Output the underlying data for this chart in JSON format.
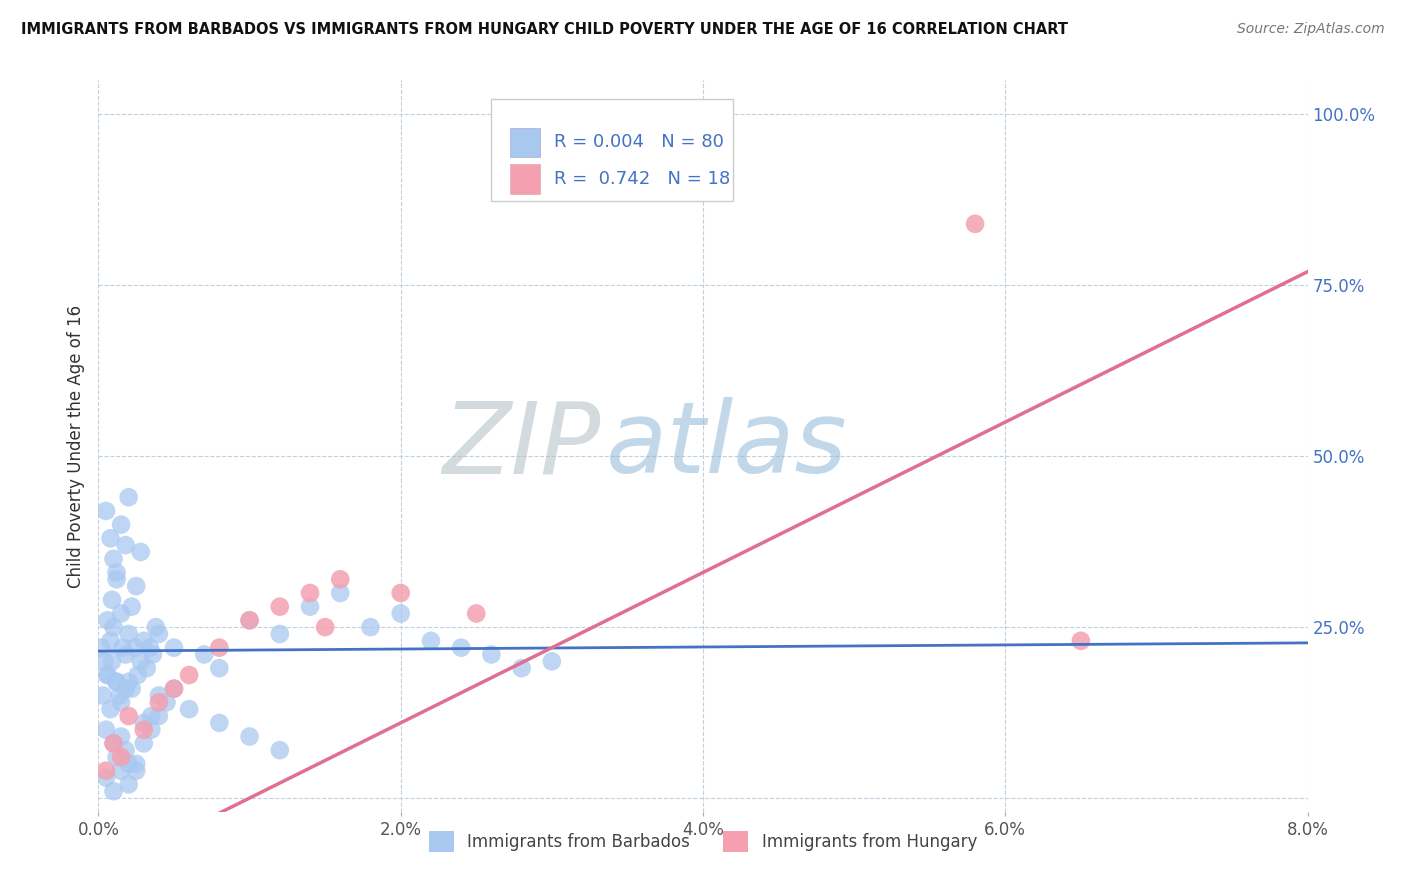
{
  "title": "IMMIGRANTS FROM BARBADOS VS IMMIGRANTS FROM HUNGARY CHILD POVERTY UNDER THE AGE OF 16 CORRELATION CHART",
  "source": "Source: ZipAtlas.com",
  "ylabel": "Child Poverty Under the Age of 16",
  "xlabel_barbados": "Immigrants from Barbados",
  "xlabel_hungary": "Immigrants from Hungary",
  "xlim": [
    0.0,
    0.08
  ],
  "ylim": [
    -0.02,
    1.05
  ],
  "xticks": [
    0.0,
    0.02,
    0.04,
    0.06,
    0.08
  ],
  "xtick_labels": [
    "0.0%",
    "2.0%",
    "4.0%",
    "6.0%",
    "8.0%"
  ],
  "yticks": [
    0.0,
    0.25,
    0.5,
    0.75,
    1.0
  ],
  "ytick_labels": [
    "",
    "25.0%",
    "50.0%",
    "75.0%",
    "100.0%"
  ],
  "barbados_color": "#a8c8f0",
  "hungary_color": "#f4a0b0",
  "barbados_line_color": "#4472c4",
  "hungary_line_color": "#e07090",
  "R_barbados": 0.004,
  "N_barbados": 80,
  "R_hungary": 0.742,
  "N_hungary": 18,
  "watermark_zip": "ZIP",
  "watermark_atlas": "atlas",
  "background_color": "#ffffff",
  "grid_color": "#c0d0e0",
  "legend_text_color": "#4472c4",
  "barbados_line_slope": 0.15,
  "barbados_line_intercept": 0.215,
  "hungary_line_slope": 11.0,
  "hungary_line_intercept": -0.11,
  "barbados_points_x": [
    0.0002,
    0.0004,
    0.0006,
    0.0008,
    0.001,
    0.0012,
    0.0014,
    0.0016,
    0.0018,
    0.002,
    0.0022,
    0.0024,
    0.0026,
    0.0028,
    0.003,
    0.0032,
    0.0034,
    0.0036,
    0.0038,
    0.004,
    0.0005,
    0.0008,
    0.001,
    0.0012,
    0.0015,
    0.0018,
    0.002,
    0.0022,
    0.0025,
    0.0028,
    0.0005,
    0.0008,
    0.001,
    0.0012,
    0.0015,
    0.0018,
    0.002,
    0.0025,
    0.003,
    0.0035,
    0.0003,
    0.0006,
    0.0009,
    0.0012,
    0.0015,
    0.0018,
    0.0006,
    0.0009,
    0.0012,
    0.0015,
    0.005,
    0.007,
    0.008,
    0.01,
    0.012,
    0.014,
    0.016,
    0.018,
    0.02,
    0.022,
    0.024,
    0.026,
    0.028,
    0.03,
    0.002,
    0.004,
    0.006,
    0.008,
    0.01,
    0.012,
    0.0005,
    0.001,
    0.0015,
    0.002,
    0.0025,
    0.003,
    0.0035,
    0.004,
    0.0045,
    0.005
  ],
  "barbados_points_y": [
    0.22,
    0.2,
    0.18,
    0.23,
    0.25,
    0.17,
    0.15,
    0.22,
    0.21,
    0.24,
    0.16,
    0.22,
    0.18,
    0.2,
    0.23,
    0.19,
    0.22,
    0.21,
    0.25,
    0.24,
    0.42,
    0.38,
    0.35,
    0.33,
    0.4,
    0.37,
    0.44,
    0.28,
    0.31,
    0.36,
    0.1,
    0.13,
    0.08,
    0.06,
    0.09,
    0.07,
    0.05,
    0.04,
    0.11,
    0.12,
    0.15,
    0.18,
    0.2,
    0.17,
    0.14,
    0.16,
    0.26,
    0.29,
    0.32,
    0.27,
    0.22,
    0.21,
    0.19,
    0.26,
    0.24,
    0.28,
    0.3,
    0.25,
    0.27,
    0.23,
    0.22,
    0.21,
    0.19,
    0.2,
    0.17,
    0.15,
    0.13,
    0.11,
    0.09,
    0.07,
    0.03,
    0.01,
    0.04,
    0.02,
    0.05,
    0.08,
    0.1,
    0.12,
    0.14,
    0.16
  ],
  "hungary_points_x": [
    0.0005,
    0.001,
    0.0015,
    0.002,
    0.003,
    0.004,
    0.005,
    0.006,
    0.008,
    0.01,
    0.012,
    0.014,
    0.015,
    0.016,
    0.02,
    0.025,
    0.058,
    0.065
  ],
  "hungary_points_y": [
    0.04,
    0.08,
    0.06,
    0.12,
    0.1,
    0.14,
    0.16,
    0.18,
    0.22,
    0.26,
    0.28,
    0.3,
    0.25,
    0.32,
    0.3,
    0.27,
    0.84,
    0.23
  ]
}
